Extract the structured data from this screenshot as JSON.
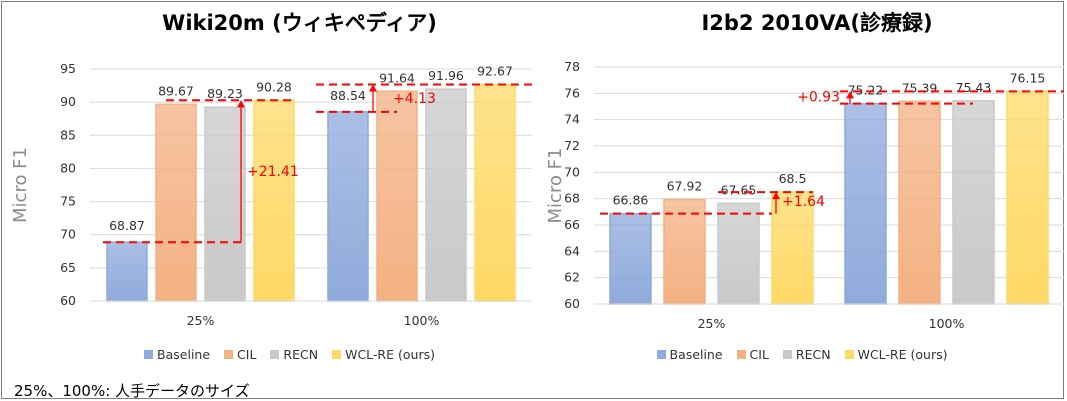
{
  "chart_data": [
    {
      "type": "bar",
      "title": "Wiki20m (ウィキペディア)",
      "ylabel": "Micro F1",
      "xlabel": "",
      "categories": [
        "25%",
        "100%"
      ],
      "ylim": [
        60,
        95
      ],
      "yticks": [
        60,
        65,
        70,
        75,
        80,
        85,
        90,
        95
      ],
      "grid": true,
      "legend_position": "bottom",
      "series": [
        {
          "name": "Baseline",
          "values": [
            68.87,
            88.54
          ]
        },
        {
          "name": "CIL",
          "values": [
            89.67,
            91.64
          ]
        },
        {
          "name": "RECN",
          "values": [
            89.23,
            91.96
          ]
        },
        {
          "name": "WCL-RE (ours)",
          "values": [
            90.28,
            92.67
          ]
        }
      ],
      "annotations": [
        {
          "text": "+21.41",
          "category": "25%",
          "from_value": 68.87,
          "to_value": 90.28
        },
        {
          "text": "+4.13",
          "category": "100%",
          "from_value": 88.54,
          "to_value": 92.67
        }
      ]
    },
    {
      "type": "bar",
      "title": "I2b2 2010VA(診療録)",
      "ylabel": "Micro F1",
      "xlabel": "",
      "categories": [
        "25%",
        "100%"
      ],
      "ylim": [
        60,
        78
      ],
      "yticks": [
        60,
        62,
        64,
        66,
        68,
        70,
        72,
        74,
        76,
        78
      ],
      "grid": true,
      "legend_position": "bottom",
      "series": [
        {
          "name": "Baseline",
          "values": [
            66.86,
            75.22
          ]
        },
        {
          "name": "CIL",
          "values": [
            67.92,
            75.39
          ]
        },
        {
          "name": "RECN",
          "values": [
            67.65,
            75.43
          ]
        },
        {
          "name": "WCL-RE (ours)",
          "values": [
            68.5,
            76.15
          ]
        }
      ],
      "annotations": [
        {
          "text": "+1.64",
          "category": "25%",
          "from_value": 66.86,
          "to_value": 68.5
        },
        {
          "text": "+0.93",
          "category": "100%",
          "from_value": 75.22,
          "to_value": 76.15
        }
      ]
    }
  ],
  "colors": {
    "Baseline": "#8faadc",
    "CIL": "#f4b183",
    "RECN": "#c9c9c9",
    "WCL-RE (ours)": "#ffd966",
    "annotation": "#ff0000"
  },
  "footnote": "25%、100%: 人手データのサイズ"
}
